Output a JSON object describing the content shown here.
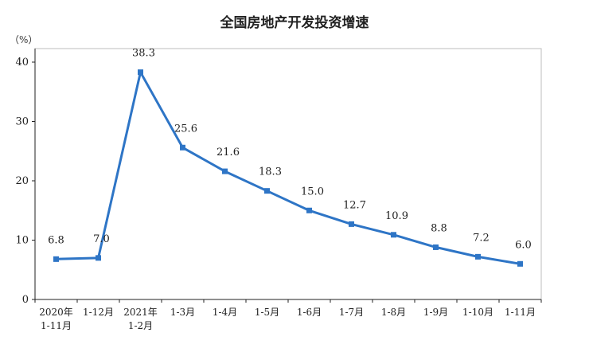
{
  "chart_data": {
    "type": "line",
    "title": "全国房地产开发投资增速",
    "unit": "（%）",
    "ylim": [
      0,
      40
    ],
    "yticks": [
      "0",
      "10",
      "20",
      "30",
      "40"
    ],
    "yticks_values": [
      0,
      10,
      20,
      30,
      40
    ],
    "grid": false,
    "legend": "none",
    "categories": [
      [
        "2020年",
        "1-11月"
      ],
      [
        "1-12月"
      ],
      [
        "2021年",
        "1-2月"
      ],
      [
        "1-3月"
      ],
      [
        "1-4月"
      ],
      [
        "1-5月"
      ],
      [
        "1-6月"
      ],
      [
        "1-7月"
      ],
      [
        "1-8月"
      ],
      [
        "1-9月"
      ],
      [
        "1-10月"
      ],
      [
        "1-11月"
      ]
    ],
    "values": [
      6.8,
      7.0,
      38.3,
      25.6,
      21.6,
      18.3,
      15.0,
      12.7,
      10.9,
      8.8,
      7.2,
      6.0
    ],
    "data_labels": [
      "6.8",
      "7.0",
      "38.3",
      "25.6",
      "21.6",
      "18.3",
      "15.0",
      "12.7",
      "10.9",
      "8.8",
      "7.2",
      "6.0"
    ],
    "colors": {
      "line": "#2e75c6",
      "axis": "#222222",
      "frame": "#bdbdbd"
    }
  }
}
